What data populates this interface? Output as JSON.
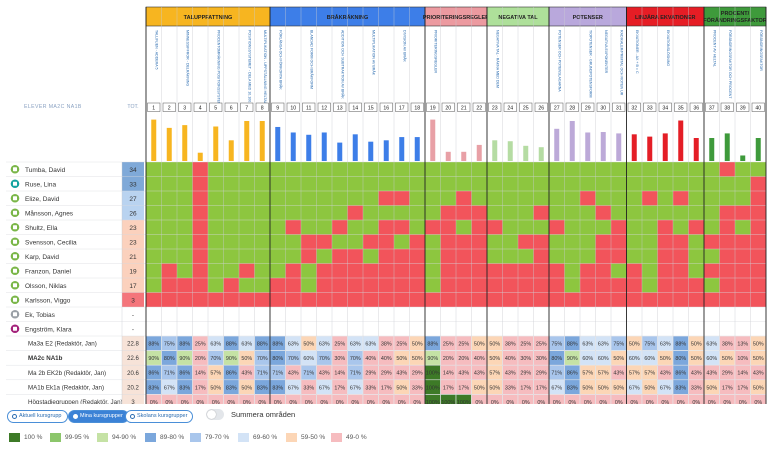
{
  "header": {
    "students_label": "ELEVER MA2C NA1B",
    "tot_label": "TOT."
  },
  "colors": {
    "grid_green": "#8dc63f",
    "grid_red": "#f2545b",
    "grid_white": "#ffffff",
    "areas": [
      "#f7b520",
      "#3d7ee8",
      "#ec9aa0",
      "#aee09a",
      "#b9a8dc",
      "#e61d25",
      "#3e9a3b"
    ],
    "bars": [
      "#f7b520",
      "#3d7ee8",
      "#e8a0a6",
      "#b5dca3",
      "#bca9d8",
      "#e41e26",
      "#3e9a3b"
    ],
    "tot": {
      "blue_dark": "#7fa9d8",
      "blue_light": "#b9d3f0",
      "peach": "#fbd1bd",
      "red": "#f4757b"
    }
  },
  "areas": [
    {
      "name": "TALUPPFATTNING",
      "start": 1,
      "end": 8
    },
    {
      "name": "BRÅKRÄKNING",
      "start": 9,
      "end": 18
    },
    {
      "name": "PRIORITERINGSREGLER",
      "start": 19,
      "end": 22
    },
    {
      "name": "NEGATIVA TAL",
      "start": 23,
      "end": 26
    },
    {
      "name": "POTENSER",
      "start": 27,
      "end": 31
    },
    {
      "name": "LINJÄRA EKVATIONER",
      "start": 32,
      "end": 36
    },
    {
      "name": "PROCENT/ FÖRÄNDRINGSFAKTOR",
      "start": 37,
      "end": 40
    }
  ],
  "questions": [
    "1",
    "2",
    "3",
    "4",
    "5",
    "6",
    "7",
    "8",
    "9",
    "10",
    "11",
    "12",
    "13",
    "14",
    "15",
    "16",
    "17",
    "18",
    "19",
    "20",
    "21",
    "22",
    "23",
    "24",
    "25",
    "26",
    "27",
    "28",
    "29",
    "30",
    "31",
    "32",
    "33",
    "34",
    "35",
    "36",
    "37",
    "38",
    "39",
    "40"
  ],
  "question_labels": {
    "1": "TALLINJEN - ADDERA 5",
    "3": "MINNESSIFFROR - DELRÄKNING",
    "5": "PROCENTOMRÄKNING POSITIONSSYSTEMET",
    "7": "POSITIONSSYSTEMET - DELA MED 10,100,1000 OCH ...",
    "8": "MULTIPLIKATION - UPPSTÄLLNING HELTAL",
    "9": "FÖRLÄNGA OCH FÖRKORTA BRÅK",
    "11": "BLANDAD FORM OCH BRÅKFORM",
    "13": "ADDITION OCH SUBTRAKTION AV BRÅK",
    "15": "MULTIPLIKATION AV BRÅK",
    "17": "DIVISION AV BRÅK",
    "19": "PRIORITERINGSREGLER",
    "23": "NEGATIVA TAL - RÄKNA MED DEM",
    "27": "POTENSER OCH POTENSLAGARNA",
    "29": "TIOPOTENSER - GRUNDPOTENSFORM",
    "30": "NEGATIVA EXPONENTER",
    "31": "RADIKALER/PRIMTAL OCH ROTEN UR",
    "32": "EKVATIONER - AX + B = C",
    "34": "EKVATIONSLÖSNING",
    "37": "PROCENT AV HELTAL",
    "38": "FÖRÄNDRINGSFAKTOR OCH PROCENT",
    "40": "FÖRÄNDRINGSFAKTOR"
  },
  "question_fill_pct": [
    90,
    72,
    78,
    18,
    75,
    45,
    87,
    87,
    74,
    62,
    57,
    62,
    40,
    58,
    42,
    45,
    52,
    52,
    90,
    20,
    20,
    35,
    45,
    43,
    33,
    30,
    70,
    87,
    62,
    63,
    60,
    58,
    53,
    60,
    88,
    50,
    50,
    60,
    12,
    50
  ],
  "students": [
    {
      "name": "Tumba, David",
      "tot": "34",
      "avatar": "green",
      "row": "GGGRGGGGGGGGGGGGGGGGGGGGGGGGGGGGGGGGGRGG"
    },
    {
      "name": "Ruse, Lina",
      "tot": "33",
      "avatar": "teal",
      "row": "GGGRGGGGGGGGGGGGGGGGGGGGGGGGGGGGGGGGGGGR"
    },
    {
      "name": "Elize, David",
      "tot": "27",
      "avatar": "green",
      "row": "GGGRGGGGGGGGGGGRRGGGRGGGGGGGRGGGRGRGGGGR"
    },
    {
      "name": "Månsson, Agnes",
      "tot": "26",
      "avatar": "green",
      "row": "GGGRGGGGGGGGGRGGGGGRRRGGGRGGGRGGGGGGGRRR"
    },
    {
      "name": "Shultz, Ella",
      "tot": "23",
      "avatar": "green",
      "row": "GGGRGGGGGRGGRGGRRGRRGRRGGGRGGGRGGRGRGRGR"
    },
    {
      "name": "Svensson, Cecilia",
      "tot": "23",
      "avatar": "green",
      "row": "GGGRGGGGGGRRGGRRGRGRRRGGRRGGGRRGGRRGRRRR"
    },
    {
      "name": "Karp, David",
      "tot": "21",
      "avatar": "green",
      "row": "GGGRGGGGGGRGRRGRRRGRRRGGGRGGGRRGGRRGGRRR"
    },
    {
      "name": "Franzon, Daniel",
      "tot": "19",
      "avatar": "green",
      "row": "GRGRGGRGGRGRRRRRRRGRRRRRRRRGRRGRGRRGRRRR"
    },
    {
      "name": "Olsson, Niklas",
      "tot": "17",
      "avatar": "green",
      "row": "GRRRGRGGRRGRRRRRRRGRRRRRRRRGRRRRGRRRGRRR"
    },
    {
      "name": "Karlsson, Viggo",
      "tot": "3",
      "avatar": "green",
      "row": "RRRRRRRRRRRRRRRRRRRRRRRRRRRRRRRRRRRRRRRR"
    },
    {
      "name": "Ek, Tobias",
      "tot": "-",
      "avatar": "gray",
      "row": "WWWWWWWWWWWWWWWWWWWWWWWWWWWWWWWWWWWWWWWW"
    },
    {
      "name": "Engström, Klara",
      "tot": "-",
      "avatar": "purple",
      "row": "WWWWWWWWWWWWWWWWWWWWWWWWWWWWWWWWWWWWWWWW"
    }
  ],
  "groups": [
    {
      "name": "Ma3a E2 (Redaktör, Jan)",
      "tot": "22.8",
      "bold": false,
      "pcts": [
        "88%",
        "75%",
        "88%",
        "25%",
        "63%",
        "88%",
        "63%",
        "88%",
        "88%",
        "63%",
        "50%",
        "63%",
        "25%",
        "63%",
        "63%",
        "38%",
        "25%",
        "50%",
        "88%",
        "25%",
        "25%",
        "50%",
        "50%",
        "38%",
        "25%",
        "25%",
        "75%",
        "88%",
        "63%",
        "63%",
        "75%",
        "50%",
        "75%",
        "63%",
        "88%",
        "50%",
        "63%",
        "38%",
        "13%",
        "50%"
      ]
    },
    {
      "name": "MA2c NA1b",
      "tot": "22.6",
      "bold": true,
      "pcts": [
        "90%",
        "80%",
        "90%",
        "20%",
        "70%",
        "90%",
        "50%",
        "70%",
        "80%",
        "70%",
        "60%",
        "70%",
        "30%",
        "70%",
        "40%",
        "40%",
        "50%",
        "50%",
        "90%",
        "20%",
        "20%",
        "40%",
        "50%",
        "40%",
        "30%",
        "30%",
        "80%",
        "90%",
        "60%",
        "60%",
        "50%",
        "60%",
        "60%",
        "50%",
        "80%",
        "50%",
        "60%",
        "50%",
        "10%",
        "50%"
      ]
    },
    {
      "name": "Ma 2b EK2b (Redaktör, Jan)",
      "tot": "20.6",
      "bold": false,
      "pcts": [
        "86%",
        "71%",
        "86%",
        "14%",
        "57%",
        "86%",
        "43%",
        "71%",
        "71%",
        "43%",
        "71%",
        "43%",
        "14%",
        "71%",
        "29%",
        "29%",
        "43%",
        "29%",
        "100%",
        "14%",
        "43%",
        "43%",
        "57%",
        "43%",
        "29%",
        "29%",
        "71%",
        "86%",
        "57%",
        "57%",
        "43%",
        "57%",
        "57%",
        "43%",
        "86%",
        "43%",
        "43%",
        "29%",
        "14%",
        "43%"
      ]
    },
    {
      "name": "MA1b Ek1a (Redaktör, Jan)",
      "tot": "20.2",
      "bold": false,
      "pcts": [
        "83%",
        "67%",
        "83%",
        "17%",
        "50%",
        "83%",
        "50%",
        "83%",
        "83%",
        "67%",
        "33%",
        "67%",
        "17%",
        "67%",
        "33%",
        "17%",
        "50%",
        "33%",
        "100%",
        "17%",
        "17%",
        "50%",
        "50%",
        "33%",
        "17%",
        "17%",
        "67%",
        "83%",
        "50%",
        "50%",
        "50%",
        "67%",
        "50%",
        "67%",
        "83%",
        "33%",
        "50%",
        "17%",
        "17%",
        "50%"
      ]
    },
    {
      "name": "Högstadiegruppen (Redaktör, Jan)",
      "tot": "3",
      "bold": false,
      "pcts": [
        "0%",
        "0%",
        "0%",
        "0%",
        "0%",
        "0%",
        "0%",
        "0%",
        "0%",
        "0%",
        "0%",
        "0%",
        "0%",
        "0%",
        "0%",
        "0%",
        "0%",
        "0%",
        "100%",
        "100%",
        "100%",
        "0%",
        "0%",
        "0%",
        "0%",
        "0%",
        "0%",
        "0%",
        "0%",
        "0%",
        "0%",
        "0%",
        "0%",
        "0%",
        "0%",
        "0%",
        "0%",
        "0%",
        "0%",
        "0%"
      ]
    }
  ],
  "filters": {
    "aktuell": "Aktuell kursgrupp",
    "mina": "Mina kursgrupper",
    "skolans": "Skolans kursgrupper",
    "summera": "Summera områden"
  },
  "legend": [
    {
      "label": "100 %",
      "color": "#3d7a27",
      "min": 100
    },
    {
      "label": "99-95 %",
      "color": "#8cc66b",
      "min": 95
    },
    {
      "label": "94-90 %",
      "color": "#c5e2a5",
      "min": 90
    },
    {
      "label": "89-80 %",
      "color": "#7ba7dc",
      "min": 80
    },
    {
      "label": "79-70 %",
      "color": "#a9c6ec",
      "min": 70
    },
    {
      "label": "69-60 %",
      "color": "#d3e3f6",
      "min": 60
    },
    {
      "label": "59-50 %",
      "color": "#fcd6b6",
      "min": 50
    },
    {
      "label": "49-0 %",
      "color": "#f6bcbf",
      "min": 0
    }
  ]
}
